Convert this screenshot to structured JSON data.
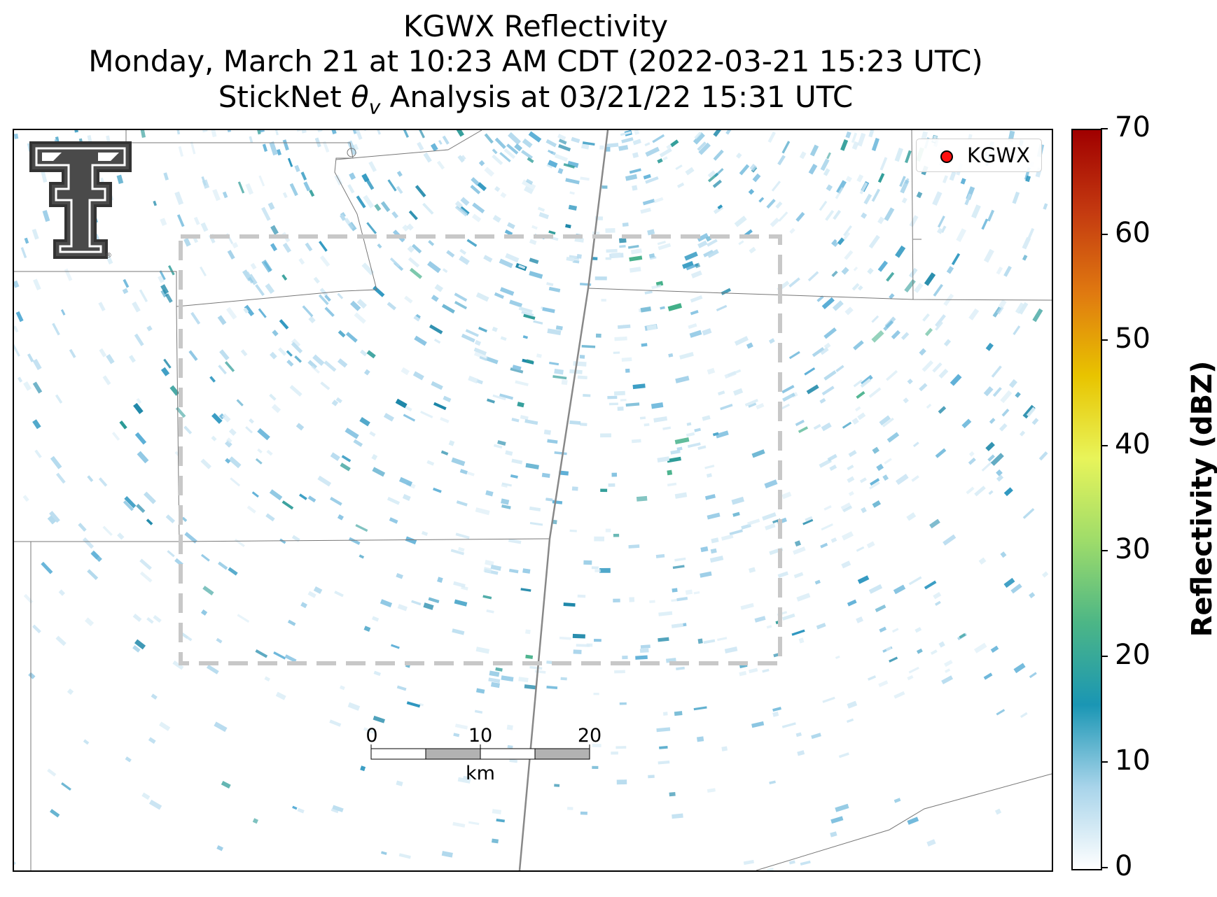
{
  "title": {
    "line1": "KGWX Reflectivity",
    "line2": "Monday, March 21 at 10:23 AM CDT (2022-03-21 15:23 UTC)",
    "line3_prefix": "StickNet ",
    "line3_theta": "θ",
    "line3_sub": "v",
    "line3_suffix": " Analysis at 03/21/22 15:31 UTC"
  },
  "legend": {
    "label": "KGWX",
    "marker_color": "#ff1010"
  },
  "colorbar": {
    "label": "Reflectivity (dBZ)",
    "min": 0,
    "max": 70,
    "ticks": [
      "0",
      "10",
      "20",
      "30",
      "40",
      "50",
      "60",
      "70"
    ],
    "colors": [
      "#ffffff",
      "#a8d4ea",
      "#1a96b4",
      "#4cb686",
      "#9edc6a",
      "#e8f45a",
      "#e8c400",
      "#e07a10",
      "#c43a10",
      "#a00000"
    ]
  },
  "scalebar": {
    "labels": [
      "0",
      "10",
      "20"
    ],
    "unit": "km"
  },
  "logo": {
    "name": "Texas Tech Double T",
    "mark": "®"
  },
  "analysis_box_color": "#cccccc"
}
